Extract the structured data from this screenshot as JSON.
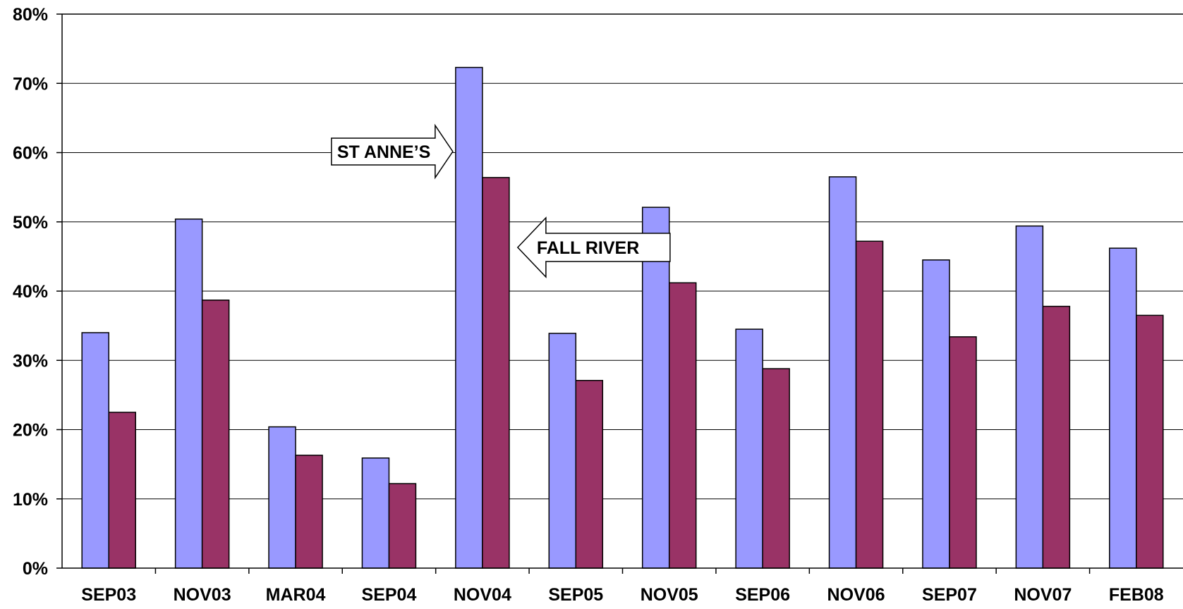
{
  "chart_data": {
    "type": "bar",
    "categories": [
      "SEP03",
      "NOV03",
      "MAR04",
      "SEP04",
      "NOV04",
      "SEP05",
      "NOV05",
      "SEP06",
      "NOV06",
      "SEP07",
      "NOV07",
      "FEB08"
    ],
    "series": [
      {
        "color": "#9999ff",
        "values": [
          34,
          50.4,
          20.4,
          15.9,
          72.3,
          33.9,
          52.1,
          34.5,
          56.5,
          44.5,
          49.4,
          46.2
        ]
      },
      {
        "color": "#993366",
        "values": [
          22.5,
          38.7,
          16.3,
          12.2,
          56.4,
          27.1,
          41.2,
          28.8,
          47.2,
          33.4,
          37.8,
          36.5
        ]
      }
    ],
    "yticks": [
      "0%",
      "10%",
      "20%",
      "30%",
      "40%",
      "50%",
      "60%",
      "70%",
      "80%"
    ],
    "ylim": [
      0,
      80
    ],
    "grid": true,
    "annotations": [
      {
        "text": "ST ANNE’S",
        "direction": "right",
        "points_to_category": "NOV04",
        "points_to_series": 0
      },
      {
        "text": "FALL RIVER",
        "direction": "left",
        "points_to_category": "NOV04",
        "points_to_series": 1
      }
    ]
  }
}
